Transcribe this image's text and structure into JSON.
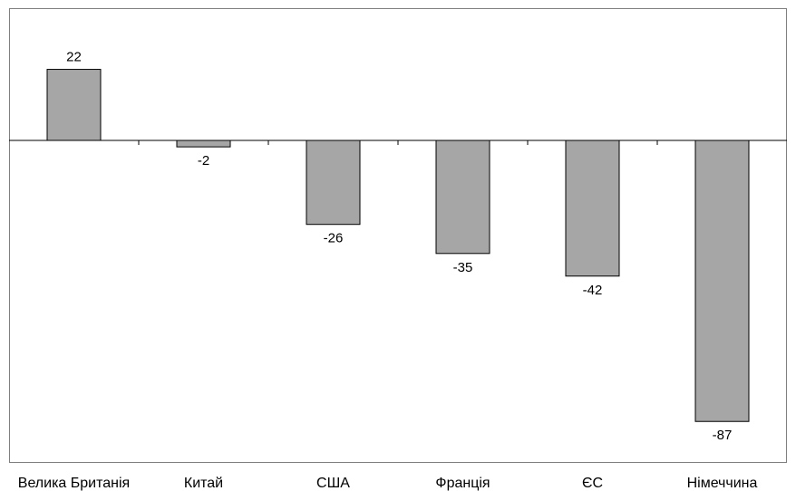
{
  "chart_data": {
    "type": "bar",
    "categories": [
      "Велика Британія",
      "Китай",
      "США",
      "Франція",
      "ЄС",
      "Німеччина"
    ],
    "values": [
      22,
      -2,
      -26,
      -35,
      -42,
      -87
    ],
    "data_labels": [
      "22",
      "-2",
      "-26",
      "-35",
      "-42",
      "-87"
    ],
    "ylim": [
      -100,
      40
    ],
    "grid": false,
    "legend": "none",
    "colors": {
      "bar_fill": "#a6a6a6",
      "bar_stroke": "#000000",
      "axis": "#000000",
      "frame": "#808080"
    }
  }
}
